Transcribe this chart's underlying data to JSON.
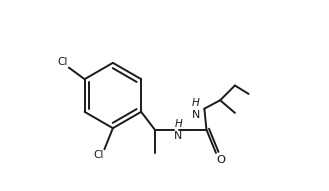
{
  "bg_color": "#ffffff",
  "line_color": "#1a1a1a",
  "text_color": "#1a1a1a",
  "lw": 1.4,
  "fs": 7.5,
  "figsize": [
    3.29,
    1.91
  ],
  "dpi": 100,
  "bx": 0.255,
  "by": 0.5,
  "br": 0.155,
  "xlim": [
    0.0,
    1.0
  ],
  "ylim": [
    0.05,
    0.95
  ]
}
